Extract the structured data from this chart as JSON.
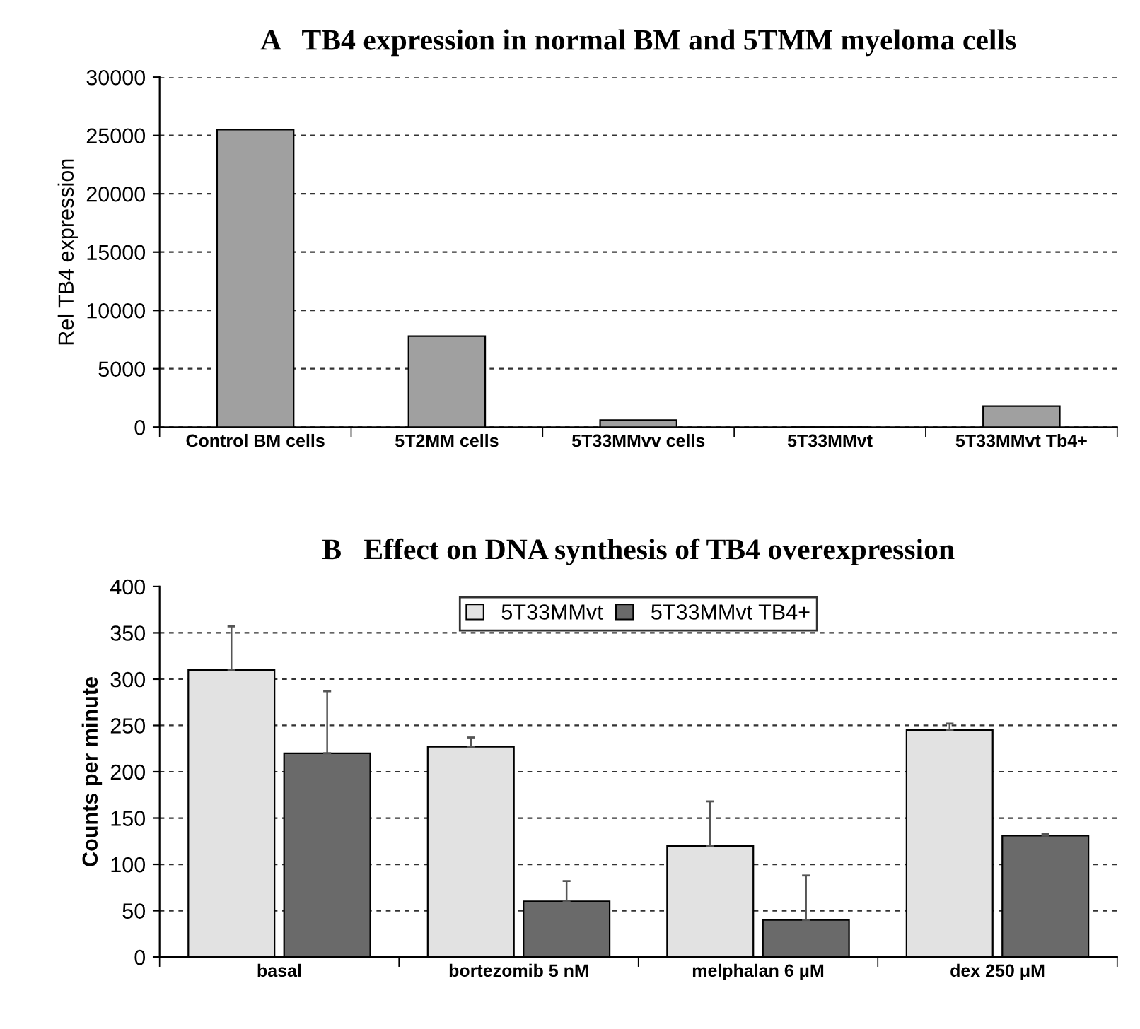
{
  "chart_data": [
    {
      "type": "bar",
      "title": "A   TB4 expression in normal BM and 5TMM myeloma cells",
      "ylabel": "Rel TB4 expression",
      "categories": [
        "Control BM cells",
        "5T2MM cells",
        "5T33MMvv cells",
        "5T33MMvt",
        "5T33MMvt Tb4+"
      ],
      "values": [
        25500,
        7800,
        600,
        0,
        1800
      ],
      "color": "#a0a0a0",
      "ylim": [
        0,
        30000
      ],
      "yticks": [
        0,
        5000,
        10000,
        15000,
        20000,
        25000,
        30000
      ],
      "grid": "y",
      "legend": false
    },
    {
      "type": "bar",
      "title": "B   Effect on DNA synthesis of TB4 overexpression",
      "ylabel": "Counts per minute",
      "categories": [
        "basal",
        "bortezomib 5 nM",
        "melphalan 6 μM",
        "dex 250 μM"
      ],
      "series": [
        {
          "name": "5T33MMvt",
          "color": "#e2e2e2",
          "values": [
            310,
            227,
            120,
            245
          ],
          "errors": [
            [
              310,
              357
            ],
            [
              227,
              237
            ],
            [
              120,
              168
            ],
            [
              245,
              252
            ]
          ]
        },
        {
          "name": "5T33MMvt TB4+",
          "color": "#6a6a6a",
          "values": [
            220,
            60,
            40,
            131
          ],
          "errors": [
            [
              220,
              287
            ],
            [
              60,
              82
            ],
            [
              40,
              88
            ],
            [
              131,
              133
            ]
          ]
        }
      ],
      "ylim": [
        0,
        400
      ],
      "yticks": [
        0,
        50,
        100,
        150,
        200,
        250,
        300,
        350,
        400
      ],
      "grid": "y",
      "legend": "top"
    }
  ]
}
